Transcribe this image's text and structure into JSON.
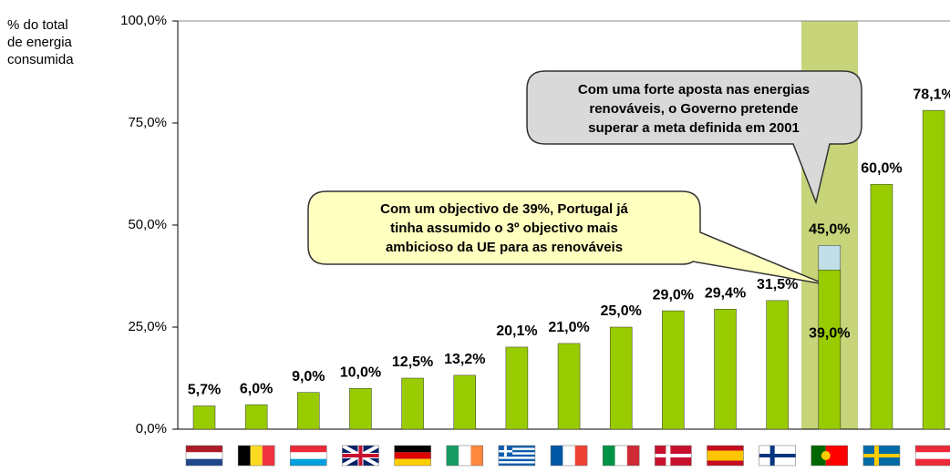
{
  "chart_data": {
    "type": "bar",
    "ylabel": [
      "% do total",
      "de energia",
      "consumida"
    ],
    "categories": [
      null,
      null,
      null,
      null,
      null,
      null,
      null,
      null,
      null,
      null,
      null,
      null,
      null,
      null,
      null
    ],
    "series": [
      {
        "color": "#99cc00",
        "values": [
          5.7,
          6.0,
          9.0,
          10.0,
          12.5,
          13.2,
          20.1,
          21.0,
          25.0,
          29.0,
          29.4,
          31.5,
          39.0,
          60.0,
          78.1
        ],
        "value_labels": [
          "5,7%",
          "6,0%",
          "9,0%",
          "10,0%",
          "12,5%",
          "13,2%",
          "20,1%",
          "21,0%",
          "25,0%",
          "29,0%",
          "29,4%",
          "31,5%",
          "39,0%",
          "60,0%",
          "78,1%"
        ]
      },
      {
        "color": "#c0dfe6",
        "values": [
          null,
          null,
          null,
          null,
          null,
          null,
          null,
          null,
          null,
          null,
          null,
          null,
          45.0,
          null,
          null
        ],
        "value_labels": [
          null,
          null,
          null,
          null,
          null,
          null,
          null,
          null,
          null,
          null,
          null,
          null,
          "45,0%",
          null,
          null
        ]
      }
    ],
    "ylim": [
      0,
      100
    ],
    "yticks": [
      {
        "value": 0,
        "label": "0,0%"
      },
      {
        "value": 25,
        "label": "25,0%"
      },
      {
        "value": 50,
        "label": "50,0%"
      },
      {
        "value": 75,
        "label": "75,0%"
      },
      {
        "value": 100,
        "label": "100,0%"
      }
    ],
    "annotations": [
      {
        "lines": [
          "Com um objectivo de 39%, Portugal já",
          "tinha assumido o 3º objectivo mais",
          "ambicioso da UE para as renováveis"
        ]
      },
      {
        "lines": [
          "Com uma forte aposta nas energias",
          "renováveis, o Governo pretende",
          "superar a meta definida em 2001"
        ]
      }
    ]
  }
}
